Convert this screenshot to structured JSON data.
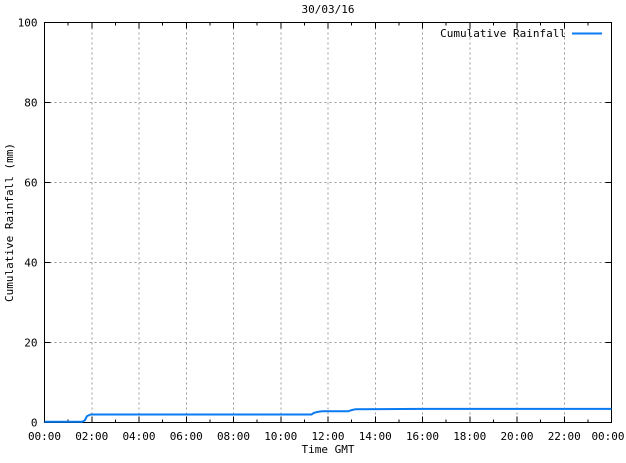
{
  "window": {
    "background": "#ffffff"
  },
  "chart_data": {
    "type": "line",
    "title": "30/03/16",
    "xlabel": "Time GMT",
    "ylabel": "Cumulative Rainfall (mm)",
    "x_tick_labels": [
      "00:00",
      "02:00",
      "04:00",
      "06:00",
      "08:00",
      "10:00",
      "12:00",
      "14:00",
      "16:00",
      "18:00",
      "20:00",
      "22:00",
      "00:00"
    ],
    "x_major_hours": [
      0,
      2,
      4,
      6,
      8,
      10,
      12,
      14,
      16,
      18,
      20,
      22,
      24
    ],
    "x_minor_hours": [
      1,
      3,
      5,
      7,
      9,
      11,
      13,
      15,
      17,
      19,
      21,
      23
    ],
    "xlim_hours": [
      0,
      24
    ],
    "y_ticks": [
      0,
      20,
      40,
      60,
      80,
      100
    ],
    "ylim": [
      0,
      100
    ],
    "grid": true,
    "legend_position": "top-right-inside",
    "legend": [
      {
        "label": "Cumulative Rainfall",
        "color": "#0a7af0"
      }
    ],
    "series": [
      {
        "name": "Cumulative Rainfall",
        "color": "#0a7af0",
        "points_hours_mm": [
          [
            0.0,
            0.2
          ],
          [
            1.6,
            0.2
          ],
          [
            1.7,
            0.5
          ],
          [
            1.8,
            1.6
          ],
          [
            1.95,
            2.0
          ],
          [
            11.3,
            2.0
          ],
          [
            11.4,
            2.4
          ],
          [
            11.6,
            2.7
          ],
          [
            11.75,
            2.8
          ],
          [
            12.85,
            2.8
          ],
          [
            13.0,
            3.1
          ],
          [
            13.15,
            3.3
          ],
          [
            16.0,
            3.4
          ],
          [
            24.0,
            3.4
          ]
        ]
      }
    ],
    "colors": {
      "axis": "#000000",
      "grid": "#9a9a9a",
      "background": "#ffffff"
    }
  }
}
